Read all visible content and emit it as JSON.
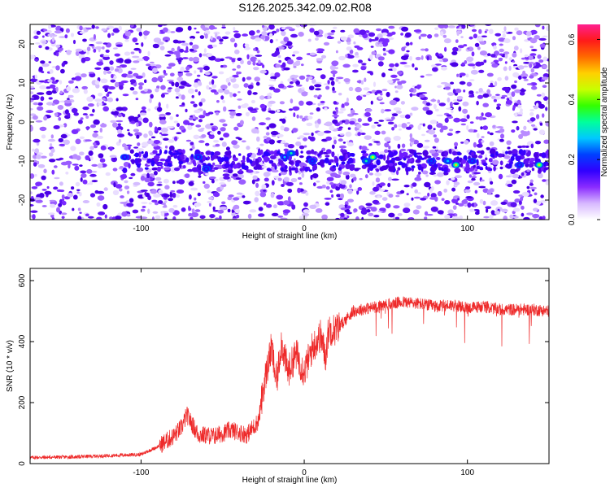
{
  "title": "S126.2025.342.09.02.R08",
  "colors": {
    "snr_line": "#ee2a2a",
    "spectrogram_palette": [
      "#ffffff",
      "#e6d8ff",
      "#c9a8ff",
      "#9b5bff",
      "#6f1cff",
      "#3e00ff",
      "#0000ff",
      "#007bff",
      "#00e0ff",
      "#00ff80",
      "#33ff00",
      "#ffd000",
      "#ff4a00",
      "#ff1e80"
    ]
  },
  "chart_data": [
    {
      "type": "heatmap",
      "xlabel": "Height of straight line (km)",
      "ylabel": "Frequency (Hz)",
      "xlim": [
        -168,
        150
      ],
      "ylim": [
        -25,
        25
      ],
      "x_ticks": [
        -100,
        0,
        100
      ],
      "y_ticks": [
        -20,
        -10,
        0,
        10,
        20
      ],
      "colorbar": {
        "label": "Normalized spectral amplitude",
        "range": [
          0.0,
          0.65
        ],
        "ticks": [
          "0.0",
          "0.2",
          "0.4",
          "0.6"
        ]
      },
      "band": {
        "frequency": -10,
        "x_range": [
          -110,
          150
        ]
      },
      "hotspots": [
        {
          "x": -110,
          "y": -9,
          "amplitude": 0.22
        },
        {
          "x": -65,
          "y": -9,
          "amplitude": 0.2
        },
        {
          "x": -60,
          "y": -12,
          "amplitude": 0.22
        },
        {
          "x": -12,
          "y": -9,
          "amplitude": 0.27
        },
        {
          "x": -8,
          "y": -8,
          "amplitude": 0.3
        },
        {
          "x": 5,
          "y": -10,
          "amplitude": 0.2
        },
        {
          "x": 38,
          "y": -10,
          "amplitude": 0.3
        },
        {
          "x": 42,
          "y": -9,
          "amplitude": 0.45
        },
        {
          "x": 78,
          "y": -10,
          "amplitude": 0.22
        },
        {
          "x": 88,
          "y": -10,
          "amplitude": 0.28
        },
        {
          "x": 93,
          "y": -11,
          "amplitude": 0.48
        },
        {
          "x": 103,
          "y": -10,
          "amplitude": 0.2
        },
        {
          "x": 132,
          "y": -11,
          "amplitude": 0.2
        },
        {
          "x": 144,
          "y": -11,
          "amplitude": 0.45
        }
      ]
    },
    {
      "type": "line",
      "xlabel": "Height of straight line (km)",
      "ylabel": "SNR (10 * v/v)",
      "xlim": [
        -168,
        150
      ],
      "ylim": [
        0,
        640
      ],
      "x_ticks": [
        -100,
        0,
        100
      ],
      "y_ticks": [
        0,
        200,
        400,
        600
      ],
      "grid": false,
      "series": [
        {
          "x": [
            -168,
            -140,
            -110,
            -100,
            -90,
            -80,
            -75,
            -72,
            -65,
            -55,
            -45,
            -35,
            -28,
            -24,
            -20,
            -17,
            -14,
            -10,
            -5,
            0,
            5,
            10,
            13,
            15,
            20,
            25,
            30,
            40,
            50,
            60,
            70,
            80,
            90,
            100,
            110,
            120,
            130,
            140,
            150
          ],
          "y": [
            20,
            22,
            28,
            30,
            55,
            90,
            120,
            160,
            95,
            90,
            110,
            95,
            140,
            280,
            380,
            260,
            400,
            300,
            360,
            300,
            380,
            420,
            350,
            440,
            440,
            470,
            500,
            510,
            520,
            530,
            525,
            515,
            520,
            510,
            515,
            505,
            505,
            505,
            500
          ]
        }
      ]
    }
  ]
}
